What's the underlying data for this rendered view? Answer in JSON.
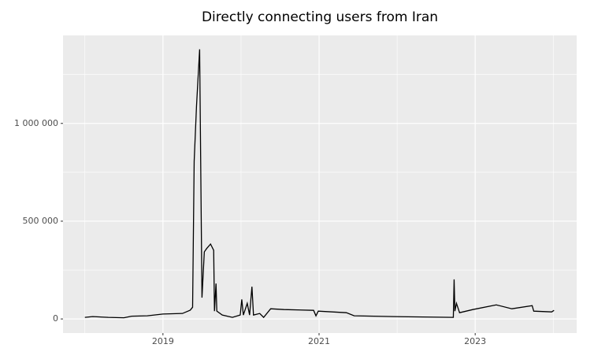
{
  "chart_data": {
    "type": "line",
    "title": "Directly connecting users from Iran",
    "x": [
      2018.0,
      2018.1,
      2018.3,
      2018.5,
      2018.6,
      2018.8,
      2019.0,
      2019.25,
      2019.35,
      2019.38,
      2019.4,
      2019.43,
      2019.47,
      2019.5,
      2019.53,
      2019.56,
      2019.61,
      2019.65,
      2019.66,
      2019.68,
      2019.69,
      2019.76,
      2019.89,
      2019.99,
      2020.01,
      2020.03,
      2020.08,
      2020.11,
      2020.14,
      2020.16,
      2020.24,
      2020.29,
      2020.38,
      2020.55,
      2020.93,
      2020.96,
      2020.99,
      2021.35,
      2021.45,
      2021.96,
      2022.72,
      2022.73,
      2022.74,
      2022.76,
      2022.8,
      2022.97,
      2023.27,
      2023.47,
      2023.73,
      2023.75,
      2023.98,
      2024.01
    ],
    "series": [
      {
        "color": "#000000",
        "values": [
          8000,
          12000,
          8000,
          6000,
          14000,
          16000,
          25000,
          28000,
          45000,
          60000,
          806000,
          1089000,
          1379000,
          109000,
          343000,
          360000,
          383000,
          351000,
          40000,
          181000,
          40000,
          20000,
          8000,
          20000,
          100000,
          20000,
          80000,
          20000,
          165000,
          20000,
          28000,
          8000,
          52000,
          48000,
          44000,
          16000,
          40000,
          32000,
          16000,
          12000,
          8000,
          202000,
          40000,
          80000,
          32000,
          48000,
          72000,
          52000,
          68000,
          40000,
          36000,
          44000
        ]
      }
    ],
    "xlim": [
      2017.72,
      2024.3
    ],
    "ylim": [
      -72000,
      1450000
    ],
    "xticks": [
      2019,
      2021,
      2023
    ],
    "xminor": [
      2018,
      2020,
      2022,
      2024
    ],
    "yticks": [
      {
        "value": 0,
        "label": "0"
      },
      {
        "value": 500000,
        "label": "500 000"
      },
      {
        "value": 1000000,
        "label": "1 000 000"
      }
    ],
    "yminor": [
      250000,
      750000,
      1250000
    ],
    "grid": true
  }
}
